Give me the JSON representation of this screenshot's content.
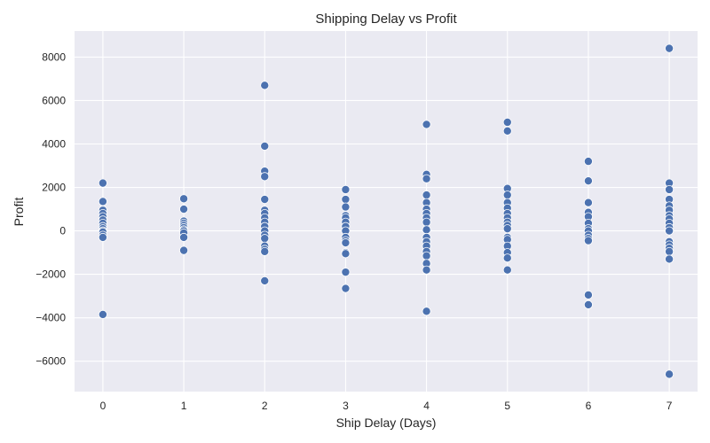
{
  "chart_data": {
    "type": "scatter",
    "title": "Shipping Delay vs Profit",
    "xlabel": "Ship Delay (Days)",
    "ylabel": "Profit",
    "xlim": [
      -0.35,
      7.35
    ],
    "ylim": [
      -7400,
      9200
    ],
    "xticks": [
      0,
      1,
      2,
      3,
      4,
      5,
      6,
      7
    ],
    "xtick_labels": [
      "0",
      "1",
      "2",
      "3",
      "4",
      "5",
      "6",
      "7"
    ],
    "yticks": [
      -6000,
      -4000,
      -2000,
      0,
      2000,
      4000,
      6000,
      8000
    ],
    "ytick_labels": [
      "−6000",
      "−4000",
      "−2000",
      "0",
      "2000",
      "4000",
      "6000",
      "8000"
    ],
    "grid": true,
    "background": "#eaeaf2",
    "point_color": "#4c72b0",
    "points": [
      [
        0,
        2200
      ],
      [
        0,
        1350
      ],
      [
        0,
        950
      ],
      [
        0,
        800
      ],
      [
        0,
        650
      ],
      [
        0,
        500
      ],
      [
        0,
        350
      ],
      [
        0,
        200
      ],
      [
        0,
        100
      ],
      [
        0,
        0
      ],
      [
        0,
        -50
      ],
      [
        0,
        -200
      ],
      [
        0,
        -300
      ],
      [
        0,
        -3850
      ],
      [
        1,
        1480
      ],
      [
        1,
        1000
      ],
      [
        1,
        450
      ],
      [
        1,
        350
      ],
      [
        1,
        250
      ],
      [
        1,
        150
      ],
      [
        1,
        50
      ],
      [
        1,
        0
      ],
      [
        1,
        -100
      ],
      [
        1,
        -300
      ],
      [
        1,
        -900
      ],
      [
        2,
        6700
      ],
      [
        2,
        3900
      ],
      [
        2,
        2750
      ],
      [
        2,
        2500
      ],
      [
        2,
        1450
      ],
      [
        2,
        950
      ],
      [
        2,
        800
      ],
      [
        2,
        600
      ],
      [
        2,
        400
      ],
      [
        2,
        200
      ],
      [
        2,
        0
      ],
      [
        2,
        -200
      ],
      [
        2,
        -350
      ],
      [
        2,
        -700
      ],
      [
        2,
        -850
      ],
      [
        2,
        -950
      ],
      [
        2,
        -2300
      ],
      [
        3,
        1900
      ],
      [
        3,
        1450
      ],
      [
        3,
        1100
      ],
      [
        3,
        700
      ],
      [
        3,
        600
      ],
      [
        3,
        400
      ],
      [
        3,
        200
      ],
      [
        3,
        0
      ],
      [
        3,
        -300
      ],
      [
        3,
        -450
      ],
      [
        3,
        -550
      ],
      [
        3,
        -1000
      ],
      [
        3,
        -1050
      ],
      [
        3,
        -1900
      ],
      [
        3,
        -2650
      ],
      [
        4,
        4900
      ],
      [
        4,
        2600
      ],
      [
        4,
        2400
      ],
      [
        4,
        1650
      ],
      [
        4,
        1300
      ],
      [
        4,
        1000
      ],
      [
        4,
        800
      ],
      [
        4,
        600
      ],
      [
        4,
        400
      ],
      [
        4,
        50
      ],
      [
        4,
        -300
      ],
      [
        4,
        -500
      ],
      [
        4,
        -700
      ],
      [
        4,
        -950
      ],
      [
        4,
        -1150
      ],
      [
        4,
        -1500
      ],
      [
        4,
        -1800
      ],
      [
        4,
        -3700
      ],
      [
        5,
        5000
      ],
      [
        5,
        4600
      ],
      [
        5,
        1950
      ],
      [
        5,
        1650
      ],
      [
        5,
        1300
      ],
      [
        5,
        1050
      ],
      [
        5,
        800
      ],
      [
        5,
        600
      ],
      [
        5,
        400
      ],
      [
        5,
        250
      ],
      [
        5,
        100
      ],
      [
        5,
        -300
      ],
      [
        5,
        -400
      ],
      [
        5,
        -700
      ],
      [
        5,
        -1000
      ],
      [
        5,
        -1250
      ],
      [
        5,
        -1800
      ],
      [
        6,
        3200
      ],
      [
        6,
        2300
      ],
      [
        6,
        1300
      ],
      [
        6,
        850
      ],
      [
        6,
        650
      ],
      [
        6,
        350
      ],
      [
        6,
        100
      ],
      [
        6,
        0
      ],
      [
        6,
        -200
      ],
      [
        6,
        -350
      ],
      [
        6,
        -450
      ],
      [
        6,
        -2950
      ],
      [
        6,
        -3400
      ],
      [
        7,
        8400
      ],
      [
        7,
        2200
      ],
      [
        7,
        1900
      ],
      [
        7,
        1450
      ],
      [
        7,
        1150
      ],
      [
        7,
        950
      ],
      [
        7,
        700
      ],
      [
        7,
        550
      ],
      [
        7,
        350
      ],
      [
        7,
        150
      ],
      [
        7,
        0
      ],
      [
        7,
        -500
      ],
      [
        7,
        -650
      ],
      [
        7,
        -800
      ],
      [
        7,
        -950
      ],
      [
        7,
        -1300
      ],
      [
        7,
        -6600
      ]
    ]
  }
}
